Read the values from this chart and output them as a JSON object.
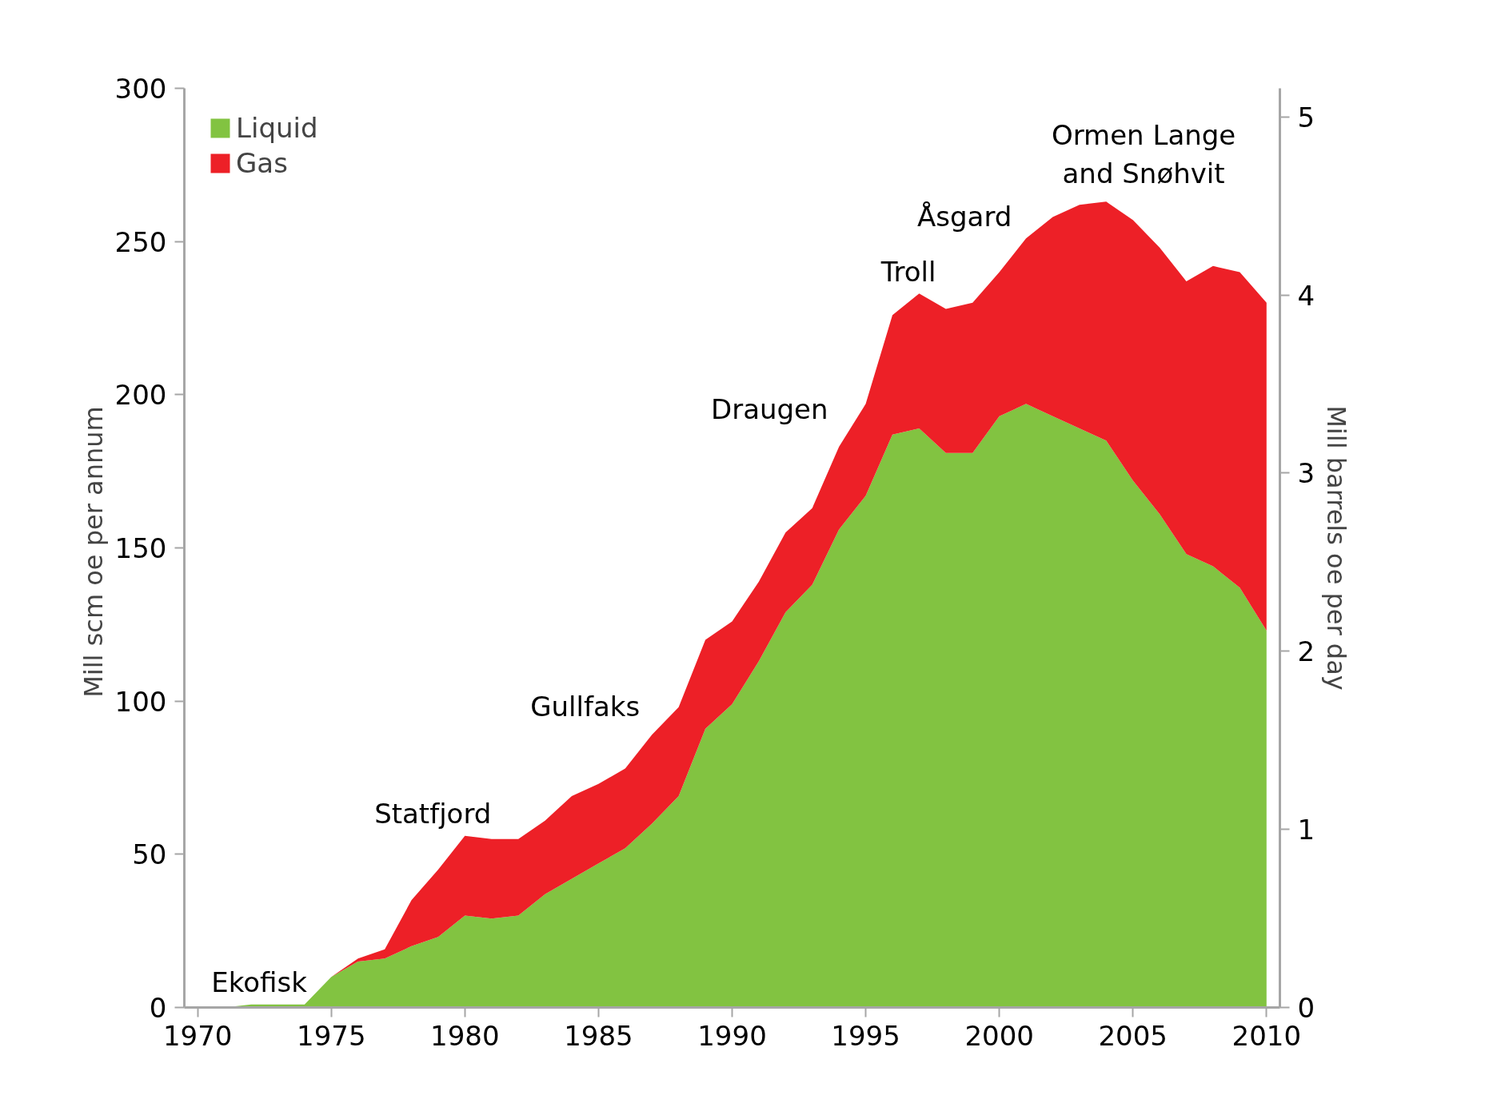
{
  "chart_data": {
    "type": "area",
    "stacked": true,
    "ylabel": "Mill  scm oe per annum",
    "y2label": "Mill barrels oe per day",
    "x": [
      1971,
      1972,
      1973,
      1974,
      1975,
      1976,
      1977,
      1978,
      1979,
      1980,
      1981,
      1982,
      1983,
      1984,
      1985,
      1986,
      1987,
      1988,
      1989,
      1990,
      1991,
      1992,
      1993,
      1994,
      1995,
      1996,
      1997,
      1998,
      1999,
      2000,
      2001,
      2002,
      2003,
      2004,
      2005,
      2006,
      2007,
      2008,
      2009,
      2010
    ],
    "series": [
      {
        "name": "Liquid",
        "color": "#82c341",
        "values": [
          0,
          1,
          1,
          1,
          10,
          15,
          16,
          20,
          23,
          30,
          29,
          30,
          37,
          42,
          47,
          52,
          60,
          69,
          91,
          99,
          113,
          129,
          138,
          156,
          167,
          187,
          189,
          181,
          181,
          193,
          197,
          193,
          189,
          185,
          172,
          161,
          148,
          144,
          137,
          123
        ]
      },
      {
        "name": "Gas",
        "color": "#ed2027",
        "values": [
          0,
          0,
          0,
          0,
          0,
          1,
          3,
          15,
          22,
          26,
          26,
          25,
          24,
          27,
          26,
          26,
          29,
          29,
          29,
          27,
          26,
          26,
          25,
          27,
          30,
          39,
          44,
          47,
          49,
          47,
          54,
          65,
          73,
          78,
          85,
          87,
          89,
          98,
          103,
          107
        ]
      }
    ],
    "xlim": [
      1969.5,
      2010.5
    ],
    "xticks": [
      1970,
      1975,
      1980,
      1985,
      1990,
      1995,
      2000,
      2005,
      2010
    ],
    "ylim": [
      0,
      300
    ],
    "yticks": [
      0,
      50,
      100,
      150,
      200,
      250,
      300
    ],
    "y2lim": [
      0,
      5.16
    ],
    "y2ticks": [
      0,
      1,
      2,
      3,
      4,
      5
    ],
    "legend": "top left",
    "grid": false,
    "annotations": [
      "Ekofisk",
      "Statfjord",
      "Gullfaks",
      "Draugen",
      "Troll",
      "Åsgard",
      "Ormen Lange\nand Snøhvit"
    ]
  }
}
